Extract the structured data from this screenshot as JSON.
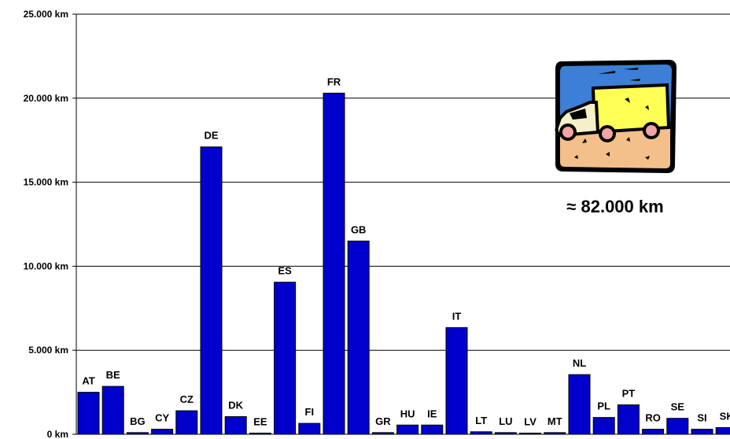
{
  "chart_data": {
    "type": "bar",
    "title": "",
    "xlabel": "",
    "ylabel": "",
    "ylim": [
      0,
      25000
    ],
    "grid": true,
    "y_ticks": [
      "0 km",
      "5.000 km",
      "10.000 km",
      "15.000 km",
      "20.000 km",
      "25.000 km"
    ],
    "categories": [
      "AT",
      "BE",
      "BG",
      "CY",
      "CZ",
      "DE",
      "DK",
      "EE",
      "ES",
      "FI",
      "FR",
      "GB",
      "GR",
      "HU",
      "IE",
      "IT",
      "LT",
      "LU",
      "LV",
      "MT",
      "NL",
      "PL",
      "PT",
      "RO",
      "SE",
      "SI",
      "SK"
    ],
    "values": [
      2500,
      2850,
      100,
      300,
      1400,
      17100,
      1050,
      50,
      9050,
      650,
      20300,
      11500,
      100,
      550,
      550,
      6350,
      150,
      100,
      50,
      100,
      3550,
      1000,
      1750,
      300,
      950,
      300,
      400
    ],
    "bar_color": "#0000cc",
    "annotation": "≈ 82.000 km"
  },
  "icon": "delivery-truck-icon"
}
